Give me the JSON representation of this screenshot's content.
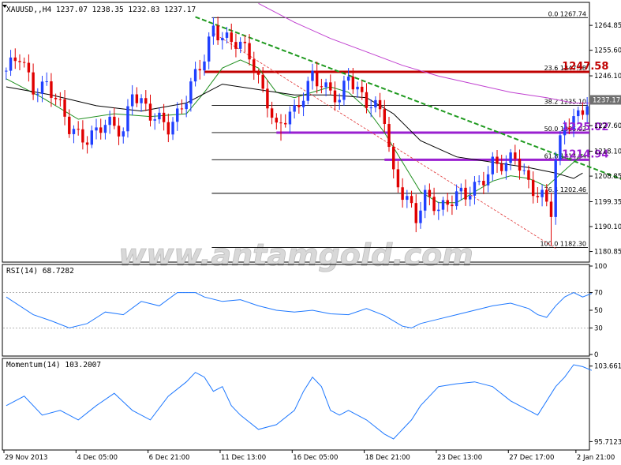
{
  "window": {
    "symbol_header": "XAUUSD,,H4  1237.07 1238.35 1232.83 1237.17",
    "watermark": "www.antamgold.com"
  },
  "colors": {
    "bull": "#2040ff",
    "bear": "#e00000",
    "ma_fast": "#1f8f1f",
    "ma_slow": "#000000",
    "ma_long": "#c040d0",
    "trendline": "#1f9a1f",
    "resistance": "#c00000",
    "support": "#9a20d0",
    "indicator_line": "#1e78ff",
    "fib": "#000000"
  },
  "chart_data": [
    {
      "type": "candlestick",
      "panel": "price",
      "title": "XAUUSD,,H4",
      "ohlc_header": "1237.07 1238.35 1232.83 1237.17",
      "ylim": [
        1177.2,
        1273.1
      ],
      "y_ticks": [
        1264.85,
        1255.6,
        1246.1,
        1227.6,
        1218.1,
        1208.85,
        1199.35,
        1190.1,
        1180.85
      ],
      "current_price": "1237.17",
      "x_ticks": [
        "29 Nov 2013",
        "4 Dec 05:00",
        "6 Dec 21:00",
        "11 Dec 13:00",
        "16 Dec 05:00",
        "18 Dec 21:00",
        "23 Dec 13:00",
        "27 Dec 17:00",
        "2 Jan 21:00"
      ],
      "bar_count": 130,
      "path_points": [
        [
          0,
          1248
        ],
        [
          3,
          1252
        ],
        [
          6,
          1242
        ],
        [
          9,
          1244
        ],
        [
          14,
          1226
        ],
        [
          18,
          1224
        ],
        [
          22,
          1227
        ],
        [
          26,
          1226
        ],
        [
          28,
          1242
        ],
        [
          32,
          1230
        ],
        [
          36,
          1228
        ],
        [
          40,
          1238
        ],
        [
          44,
          1252
        ],
        [
          46,
          1265
        ],
        [
          48,
          1262
        ],
        [
          54,
          1253
        ],
        [
          58,
          1238
        ],
        [
          60,
          1226
        ],
        [
          64,
          1232
        ],
        [
          68,
          1248
        ],
        [
          71,
          1240
        ],
        [
          74,
          1236
        ],
        [
          76,
          1248
        ],
        [
          80,
          1236
        ],
        [
          84,
          1230
        ],
        [
          86,
          1210
        ],
        [
          89,
          1201
        ],
        [
          91,
          1192
        ],
        [
          93,
          1200
        ],
        [
          96,
          1198
        ],
        [
          100,
          1202
        ],
        [
          102,
          1200
        ],
        [
          105,
          1206
        ],
        [
          108,
          1215
        ],
        [
          111,
          1212
        ],
        [
          113,
          1215
        ],
        [
          116,
          1207
        ],
        [
          119,
          1202
        ],
        [
          121,
          1195
        ],
        [
          122,
          1213
        ],
        [
          124,
          1227
        ],
        [
          127,
          1233
        ],
        [
          129,
          1237
        ]
      ],
      "wicks": {
        "61": 1222,
        "121": 1183
      },
      "moving_averages": [
        {
          "name": "MA fast",
          "points": [
            [
              0,
              1245
            ],
            [
              8,
              1238
            ],
            [
              16,
              1230
            ],
            [
              24,
              1232
            ],
            [
              32,
              1231
            ],
            [
              40,
              1232
            ],
            [
              44,
              1240
            ],
            [
              48,
              1249
            ],
            [
              52,
              1252
            ],
            [
              56,
              1249
            ],
            [
              60,
              1240
            ],
            [
              64,
              1238
            ],
            [
              68,
              1240
            ],
            [
              72,
              1242
            ],
            [
              76,
              1240
            ],
            [
              80,
              1234
            ],
            [
              84,
              1225
            ],
            [
              88,
              1214
            ],
            [
              92,
              1203
            ],
            [
              96,
              1199
            ],
            [
              100,
              1199
            ],
            [
              104,
              1203
            ],
            [
              108,
              1207
            ],
            [
              112,
              1209
            ],
            [
              116,
              1208
            ],
            [
              120,
              1205
            ],
            [
              124,
              1211
            ],
            [
              128,
              1217
            ]
          ]
        },
        {
          "name": "MA slow",
          "points": [
            [
              0,
              1242
            ],
            [
              10,
              1239
            ],
            [
              20,
              1235
            ],
            [
              30,
              1233
            ],
            [
              40,
              1236
            ],
            [
              48,
              1243
            ],
            [
              56,
              1241
            ],
            [
              64,
              1239
            ],
            [
              72,
              1239
            ],
            [
              80,
              1238
            ],
            [
              86,
              1232
            ],
            [
              92,
              1222
            ],
            [
              100,
              1216
            ],
            [
              108,
              1214
            ],
            [
              116,
              1212
            ],
            [
              122,
              1210
            ],
            [
              126,
              1208
            ],
            [
              128,
              1210
            ]
          ]
        },
        {
          "name": "MA long",
          "points": [
            [
              56,
              1273
            ],
            [
              64,
              1266
            ],
            [
              72,
              1260
            ],
            [
              80,
              1255
            ],
            [
              88,
              1250
            ],
            [
              96,
              1246
            ],
            [
              104,
              1243
            ],
            [
              112,
              1240
            ],
            [
              120,
              1238
            ],
            [
              126,
              1236
            ],
            [
              130,
              1236
            ]
          ]
        }
      ],
      "trendline": {
        "from": [
          42,
          1268
        ],
        "to": [
          155,
          1196
        ]
      },
      "fib_drawdown_line": {
        "from": [
          46,
          1262
        ],
        "to": [
          122,
          1182
        ]
      },
      "fibonacci": {
        "levels": [
          {
            "label": "0.0 1267.74",
            "price": 1267.74
          },
          {
            "label": "23.6 1247.58",
            "price": 1247.58
          },
          {
            "label": "38.2 1235.10",
            "price": 1235.1
          },
          {
            "label": "50.0 1225.02",
            "price": 1225.02
          },
          {
            "label": "61.8 1214.94",
            "price": 1214.94
          },
          {
            "label": "76.4 1202.46",
            "price": 1202.46
          },
          {
            "label": "100.0 1182.30",
            "price": 1182.3
          }
        ]
      },
      "horizontal_levels": [
        {
          "label": "1247.58",
          "price": 1247.58,
          "color_key": "resistance"
        },
        {
          "label": "1225.02",
          "price": 1225.02,
          "color_key": "support"
        },
        {
          "label": "1214.94",
          "price": 1214.94,
          "color_key": "support"
        }
      ]
    },
    {
      "type": "line",
      "panel": "rsi",
      "title": "RSI(14) 68.7282",
      "ylim": [
        0,
        100
      ],
      "y_ticks": [
        100,
        70,
        50,
        30,
        0
      ],
      "levels": [
        70,
        30
      ],
      "x": [
        0,
        6,
        10,
        14,
        18,
        22,
        26,
        30,
        34,
        38,
        42,
        44,
        48,
        52,
        56,
        60,
        64,
        68,
        72,
        76,
        80,
        84,
        86,
        88,
        90,
        92,
        96,
        100,
        104,
        108,
        112,
        116,
        118,
        120,
        122,
        124,
        126,
        128,
        130
      ],
      "values": [
        65,
        45,
        38,
        30,
        35,
        48,
        45,
        60,
        55,
        70,
        70,
        65,
        60,
        62,
        55,
        50,
        48,
        50,
        46,
        45,
        52,
        44,
        38,
        32,
        30,
        35,
        40,
        45,
        50,
        55,
        58,
        52,
        45,
        42,
        55,
        65,
        70,
        65,
        69
      ]
    },
    {
      "type": "line",
      "panel": "momentum",
      "title": "Momentum(14) 103.2007",
      "ylim": [
        95.0,
        104.3
      ],
      "y_ticks": [
        103.6612,
        95.7123
      ],
      "x": [
        0,
        4,
        8,
        12,
        16,
        20,
        24,
        28,
        32,
        36,
        40,
        42,
        44,
        46,
        48,
        50,
        52,
        56,
        60,
        64,
        66,
        68,
        70,
        72,
        74,
        76,
        80,
        84,
        86,
        88,
        90,
        92,
        96,
        100,
        104,
        108,
        112,
        116,
        118,
        120,
        122,
        124,
        126,
        128,
        130
      ],
      "values": [
        99.5,
        100.5,
        98.5,
        99.0,
        98.0,
        99.5,
        100.8,
        99.0,
        98.0,
        100.5,
        102.0,
        103.0,
        102.5,
        101.0,
        101.5,
        99.5,
        98.5,
        97.0,
        97.5,
        99.0,
        101.0,
        102.5,
        101.5,
        99.0,
        98.5,
        99.0,
        98.0,
        96.5,
        96.0,
        97.0,
        98.0,
        99.5,
        101.5,
        101.8,
        102.0,
        101.5,
        100.0,
        99.0,
        98.5,
        100.0,
        101.5,
        102.5,
        103.8,
        103.6,
        103.2
      ]
    }
  ]
}
